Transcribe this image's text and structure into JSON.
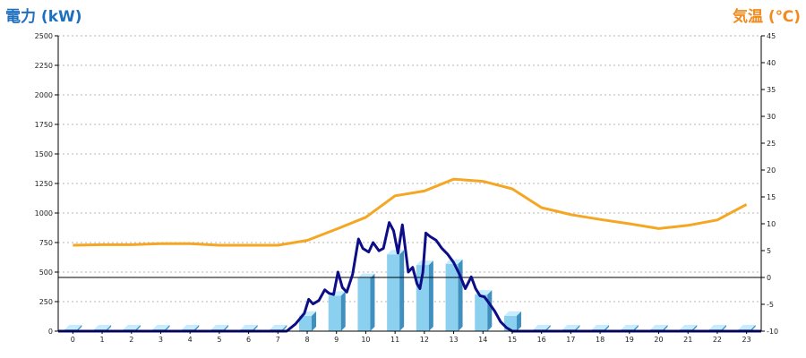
{
  "chart_data": {
    "type": "bar+line",
    "y_left": {
      "title": "電力 (kW)",
      "range": [
        0,
        2500
      ],
      "ticks": [
        0,
        250,
        500,
        750,
        1000,
        1250,
        1500,
        1750,
        2000,
        2250,
        2500
      ]
    },
    "y_right": {
      "title": "気温 (℃)",
      "range": [
        -10,
        45
      ],
      "ticks": [
        -10,
        -5,
        0,
        5,
        10,
        15,
        20,
        25,
        30,
        35,
        40,
        45
      ]
    },
    "x": {
      "range": [
        -0.5,
        23.5
      ],
      "ticks": [
        0,
        1,
        2,
        3,
        4,
        5,
        6,
        7,
        8,
        9,
        10,
        11,
        12,
        13,
        14,
        15,
        16,
        17,
        18,
        19,
        20,
        21,
        22,
        23
      ]
    },
    "grid": {
      "horizontal": true,
      "style": "dotted"
    },
    "bars_power_kw": {
      "hours": [
        0,
        1,
        2,
        3,
        4,
        5,
        6,
        7,
        8,
        9,
        10,
        11,
        12,
        13,
        14,
        15,
        16,
        17,
        18,
        19,
        20,
        21,
        22,
        23
      ],
      "values": [
        0,
        0,
        0,
        0,
        0,
        0,
        0,
        0,
        130,
        300,
        450,
        650,
        560,
        570,
        310,
        130,
        0,
        0,
        0,
        0,
        0,
        0,
        0,
        0
      ]
    },
    "line_power_kw": {
      "x": [
        6.5,
        7.0,
        7.3,
        7.6,
        7.9,
        8.05,
        8.2,
        8.4,
        8.6,
        8.75,
        8.9,
        9.05,
        9.2,
        9.35,
        9.55,
        9.75,
        9.9,
        10.1,
        10.25,
        10.45,
        10.6,
        10.8,
        10.95,
        11.1,
        11.25,
        11.45,
        11.6,
        11.75,
        11.85,
        11.95,
        12.05,
        12.2,
        12.4,
        12.6,
        12.8,
        13.0,
        13.2,
        13.4,
        13.6,
        13.75,
        13.9,
        14.05,
        14.2,
        14.4,
        14.6,
        14.8,
        15.0,
        15.2,
        15.5,
        15.8,
        16.0
      ],
      "y": [
        0,
        0,
        0,
        60,
        150,
        270,
        230,
        260,
        350,
        320,
        310,
        500,
        370,
        330,
        480,
        780,
        700,
        670,
        750,
        680,
        700,
        920,
        850,
        660,
        900,
        500,
        540,
        400,
        360,
        500,
        830,
        800,
        770,
        700,
        650,
        580,
        480,
        360,
        460,
        360,
        300,
        290,
        240,
        170,
        80,
        30,
        0,
        0,
        0,
        0,
        0
      ]
    },
    "line_temperature_c": {
      "x": [
        0,
        1,
        2,
        3,
        4,
        5,
        6,
        7,
        8,
        9,
        10,
        11,
        12,
        13,
        14,
        15,
        16,
        17,
        18,
        19,
        20,
        21,
        22,
        23
      ],
      "y": [
        6,
        6.1,
        6.1,
        6.3,
        6.3,
        6,
        6,
        6,
        6.9,
        9,
        11.2,
        15.2,
        16.1,
        18.3,
        17.9,
        16.5,
        13,
        11.7,
        10.8,
        10,
        9.1,
        9.7,
        10.7,
        13.6
      ]
    },
    "reference_line_c": 0,
    "colors": {
      "temperature": "#f5a623",
      "power_line": "#0c0d87",
      "bar_front": "#8cd0f0",
      "bar_side": "#3f8fbf",
      "bar_top": "#c8ecff",
      "title_left": "#1f6fbf",
      "title_right": "#f28a1e"
    }
  }
}
